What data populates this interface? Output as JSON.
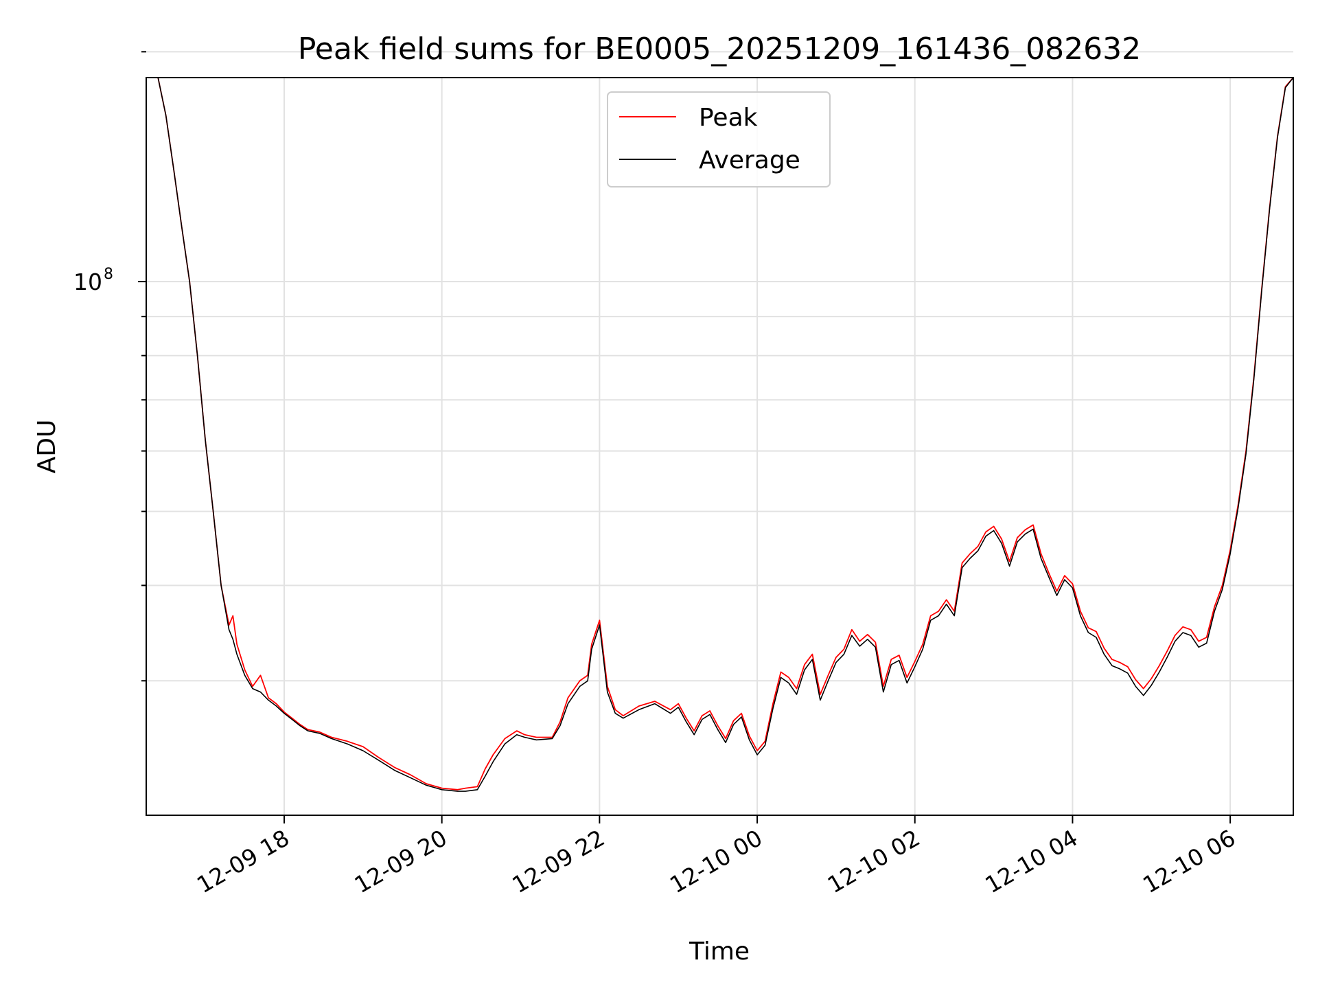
{
  "chart_data": {
    "type": "line",
    "title": "Peak field sums for BE0005_20251209_161436_082632",
    "xlabel": "Time",
    "ylabel": "ADU",
    "yscale": "log",
    "grid": true,
    "legend_position": "top-center",
    "x_unit": "hours since 2025-12-09 00:00",
    "xlim": [
      16.25,
      30.8
    ],
    "ylim": [
      20000000,
      185000000
    ],
    "x_ticks": [
      {
        "value": 18,
        "label": "12-09 18"
      },
      {
        "value": 20,
        "label": "12-09 20"
      },
      {
        "value": 22,
        "label": "12-09 22"
      },
      {
        "value": 24,
        "label": "12-10 00"
      },
      {
        "value": 26,
        "label": "12-10 02"
      },
      {
        "value": 28,
        "label": "12-10 04"
      },
      {
        "value": 30,
        "label": "12-10 06"
      }
    ],
    "y_major_ticks": [
      {
        "value": 100000000,
        "base": "10",
        "exponent": "8"
      }
    ],
    "y_minor_ticks": [
      30000000,
      40000000,
      50000000,
      60000000,
      70000000,
      80000000,
      90000000,
      200000000
    ],
    "series": [
      {
        "name": "Peak",
        "color": "#ff0000",
        "points": [
          [
            16.25,
            185000000
          ],
          [
            16.4,
            185000000
          ],
          [
            16.5,
            165000000
          ],
          [
            16.6,
            140000000
          ],
          [
            16.7,
            118000000
          ],
          [
            16.8,
            100000000
          ],
          [
            16.9,
            80000000
          ],
          [
            17.0,
            62000000
          ],
          [
            17.1,
            50000000
          ],
          [
            17.2,
            40000000
          ],
          [
            17.3,
            35500000
          ],
          [
            17.35,
            36500000
          ],
          [
            17.4,
            33500000
          ],
          [
            17.5,
            31000000
          ],
          [
            17.6,
            29500000
          ],
          [
            17.7,
            30500000
          ],
          [
            17.8,
            28500000
          ],
          [
            17.9,
            28000000
          ],
          [
            18.0,
            27300000
          ],
          [
            18.1,
            26800000
          ],
          [
            18.2,
            26300000
          ],
          [
            18.3,
            25900000
          ],
          [
            18.45,
            25700000
          ],
          [
            18.6,
            25300000
          ],
          [
            18.8,
            25000000
          ],
          [
            19.0,
            24600000
          ],
          [
            19.2,
            23800000
          ],
          [
            19.4,
            23100000
          ],
          [
            19.6,
            22600000
          ],
          [
            19.8,
            22000000
          ],
          [
            20.0,
            21700000
          ],
          [
            20.2,
            21600000
          ],
          [
            20.3,
            21700000
          ],
          [
            20.45,
            21800000
          ],
          [
            20.55,
            23000000
          ],
          [
            20.65,
            24000000
          ],
          [
            20.8,
            25200000
          ],
          [
            20.95,
            25800000
          ],
          [
            21.05,
            25500000
          ],
          [
            21.2,
            25300000
          ],
          [
            21.4,
            25300000
          ],
          [
            21.5,
            26500000
          ],
          [
            21.6,
            28500000
          ],
          [
            21.75,
            30000000
          ],
          [
            21.85,
            30500000
          ],
          [
            21.9,
            33500000
          ],
          [
            22.0,
            36000000
          ],
          [
            22.1,
            29500000
          ],
          [
            22.2,
            27500000
          ],
          [
            22.3,
            27000000
          ],
          [
            22.5,
            27800000
          ],
          [
            22.7,
            28200000
          ],
          [
            22.9,
            27500000
          ],
          [
            23.0,
            28000000
          ],
          [
            23.1,
            26800000
          ],
          [
            23.2,
            25800000
          ],
          [
            23.3,
            27000000
          ],
          [
            23.4,
            27400000
          ],
          [
            23.5,
            26200000
          ],
          [
            23.6,
            25200000
          ],
          [
            23.7,
            26600000
          ],
          [
            23.8,
            27200000
          ],
          [
            23.9,
            25400000
          ],
          [
            24.0,
            24300000
          ],
          [
            24.1,
            25000000
          ],
          [
            24.2,
            28000000
          ],
          [
            24.3,
            30800000
          ],
          [
            24.4,
            30300000
          ],
          [
            24.5,
            29300000
          ],
          [
            24.6,
            31500000
          ],
          [
            24.7,
            32500000
          ],
          [
            24.8,
            28800000
          ],
          [
            24.9,
            30500000
          ],
          [
            25.0,
            32200000
          ],
          [
            25.1,
            33000000
          ],
          [
            25.2,
            35000000
          ],
          [
            25.3,
            33800000
          ],
          [
            25.4,
            34500000
          ],
          [
            25.5,
            33700000
          ],
          [
            25.6,
            29500000
          ],
          [
            25.7,
            32000000
          ],
          [
            25.8,
            32400000
          ],
          [
            25.9,
            30300000
          ],
          [
            26.0,
            31800000
          ],
          [
            26.1,
            33500000
          ],
          [
            26.2,
            36500000
          ],
          [
            26.3,
            37000000
          ],
          [
            26.4,
            38300000
          ],
          [
            26.5,
            37000000
          ],
          [
            26.6,
            42800000
          ],
          [
            26.7,
            44000000
          ],
          [
            26.8,
            45000000
          ],
          [
            26.9,
            47000000
          ],
          [
            27.0,
            47800000
          ],
          [
            27.1,
            46000000
          ],
          [
            27.2,
            43000000
          ],
          [
            27.3,
            46200000
          ],
          [
            27.4,
            47300000
          ],
          [
            27.5,
            48000000
          ],
          [
            27.6,
            44000000
          ],
          [
            27.7,
            41500000
          ],
          [
            27.8,
            39300000
          ],
          [
            27.9,
            41200000
          ],
          [
            28.0,
            40200000
          ],
          [
            28.1,
            37000000
          ],
          [
            28.2,
            35200000
          ],
          [
            28.3,
            34800000
          ],
          [
            28.4,
            33100000
          ],
          [
            28.5,
            32000000
          ],
          [
            28.6,
            31700000
          ],
          [
            28.7,
            31300000
          ],
          [
            28.8,
            30100000
          ],
          [
            28.9,
            29300000
          ],
          [
            29.0,
            30200000
          ],
          [
            29.1,
            31400000
          ],
          [
            29.2,
            32800000
          ],
          [
            29.3,
            34400000
          ],
          [
            29.4,
            35300000
          ],
          [
            29.5,
            35000000
          ],
          [
            29.6,
            33800000
          ],
          [
            29.7,
            34200000
          ],
          [
            29.8,
            37500000
          ],
          [
            29.9,
            40000000
          ],
          [
            30.0,
            44500000
          ],
          [
            30.1,
            51000000
          ],
          [
            30.2,
            60000000
          ],
          [
            30.3,
            75000000
          ],
          [
            30.4,
            98000000
          ],
          [
            30.5,
            125000000
          ],
          [
            30.6,
            155000000
          ],
          [
            30.7,
            180000000
          ],
          [
            30.8,
            185000000
          ]
        ]
      },
      {
        "name": "Average",
        "color": "#000000",
        "points": [
          [
            16.25,
            185000000
          ],
          [
            16.4,
            185000000
          ],
          [
            16.5,
            165000000
          ],
          [
            16.6,
            140000000
          ],
          [
            16.7,
            118000000
          ],
          [
            16.8,
            100000000
          ],
          [
            16.9,
            80000000
          ],
          [
            17.0,
            62000000
          ],
          [
            17.1,
            50000000
          ],
          [
            17.2,
            40000000
          ],
          [
            17.3,
            35000000
          ],
          [
            17.35,
            34000000
          ],
          [
            17.4,
            32500000
          ],
          [
            17.5,
            30500000
          ],
          [
            17.6,
            29300000
          ],
          [
            17.7,
            29000000
          ],
          [
            17.8,
            28300000
          ],
          [
            17.9,
            27800000
          ],
          [
            18.0,
            27200000
          ],
          [
            18.1,
            26700000
          ],
          [
            18.2,
            26200000
          ],
          [
            18.3,
            25800000
          ],
          [
            18.45,
            25600000
          ],
          [
            18.6,
            25200000
          ],
          [
            18.8,
            24800000
          ],
          [
            19.0,
            24300000
          ],
          [
            19.2,
            23600000
          ],
          [
            19.4,
            22900000
          ],
          [
            19.6,
            22400000
          ],
          [
            19.8,
            21900000
          ],
          [
            20.0,
            21600000
          ],
          [
            20.2,
            21500000
          ],
          [
            20.3,
            21500000
          ],
          [
            20.45,
            21600000
          ],
          [
            20.55,
            22500000
          ],
          [
            20.65,
            23500000
          ],
          [
            20.8,
            24800000
          ],
          [
            20.95,
            25500000
          ],
          [
            21.05,
            25300000
          ],
          [
            21.2,
            25100000
          ],
          [
            21.4,
            25200000
          ],
          [
            21.5,
            26200000
          ],
          [
            21.6,
            28000000
          ],
          [
            21.75,
            29500000
          ],
          [
            21.85,
            30000000
          ],
          [
            21.9,
            33000000
          ],
          [
            22.0,
            35500000
          ],
          [
            22.1,
            29000000
          ],
          [
            22.2,
            27200000
          ],
          [
            22.3,
            26800000
          ],
          [
            22.5,
            27500000
          ],
          [
            22.7,
            28000000
          ],
          [
            22.9,
            27200000
          ],
          [
            23.0,
            27700000
          ],
          [
            23.1,
            26500000
          ],
          [
            23.2,
            25500000
          ],
          [
            23.3,
            26700000
          ],
          [
            23.4,
            27100000
          ],
          [
            23.5,
            25900000
          ],
          [
            23.6,
            24900000
          ],
          [
            23.7,
            26300000
          ],
          [
            23.8,
            26900000
          ],
          [
            23.9,
            25100000
          ],
          [
            24.0,
            24000000
          ],
          [
            24.1,
            24700000
          ],
          [
            24.2,
            27600000
          ],
          [
            24.3,
            30300000
          ],
          [
            24.4,
            29800000
          ],
          [
            24.5,
            28800000
          ],
          [
            24.6,
            31000000
          ],
          [
            24.7,
            32000000
          ],
          [
            24.8,
            28300000
          ],
          [
            24.9,
            30000000
          ],
          [
            25.0,
            31700000
          ],
          [
            25.1,
            32500000
          ],
          [
            25.2,
            34400000
          ],
          [
            25.3,
            33300000
          ],
          [
            25.4,
            34000000
          ],
          [
            25.5,
            33200000
          ],
          [
            25.6,
            29000000
          ],
          [
            25.7,
            31500000
          ],
          [
            25.8,
            31900000
          ],
          [
            25.9,
            29800000
          ],
          [
            26.0,
            31300000
          ],
          [
            26.1,
            33000000
          ],
          [
            26.2,
            36000000
          ],
          [
            26.3,
            36500000
          ],
          [
            26.4,
            37800000
          ],
          [
            26.5,
            36500000
          ],
          [
            26.6,
            42200000
          ],
          [
            26.7,
            43400000
          ],
          [
            26.8,
            44400000
          ],
          [
            26.9,
            46400000
          ],
          [
            27.0,
            47200000
          ],
          [
            27.1,
            45400000
          ],
          [
            27.2,
            42400000
          ],
          [
            27.3,
            45600000
          ],
          [
            27.4,
            46700000
          ],
          [
            27.5,
            47400000
          ],
          [
            27.6,
            43400000
          ],
          [
            27.7,
            41000000
          ],
          [
            27.8,
            38800000
          ],
          [
            27.9,
            40700000
          ],
          [
            28.0,
            39700000
          ],
          [
            28.1,
            36500000
          ],
          [
            28.2,
            34700000
          ],
          [
            28.3,
            34200000
          ],
          [
            28.4,
            32500000
          ],
          [
            28.5,
            31400000
          ],
          [
            28.6,
            31100000
          ],
          [
            28.7,
            30700000
          ],
          [
            28.8,
            29500000
          ],
          [
            28.9,
            28700000
          ],
          [
            29.0,
            29600000
          ],
          [
            29.1,
            30800000
          ],
          [
            29.2,
            32200000
          ],
          [
            29.3,
            33800000
          ],
          [
            29.4,
            34700000
          ],
          [
            29.5,
            34400000
          ],
          [
            29.6,
            33200000
          ],
          [
            29.7,
            33600000
          ],
          [
            29.8,
            37000000
          ],
          [
            29.9,
            39500000
          ],
          [
            30.0,
            44000000
          ],
          [
            30.1,
            50500000
          ],
          [
            30.2,
            59500000
          ],
          [
            30.3,
            74500000
          ],
          [
            30.4,
            97500000
          ],
          [
            30.5,
            124500000
          ],
          [
            30.6,
            154500000
          ],
          [
            30.7,
            179500000
          ],
          [
            30.8,
            185000000
          ]
        ]
      }
    ]
  }
}
